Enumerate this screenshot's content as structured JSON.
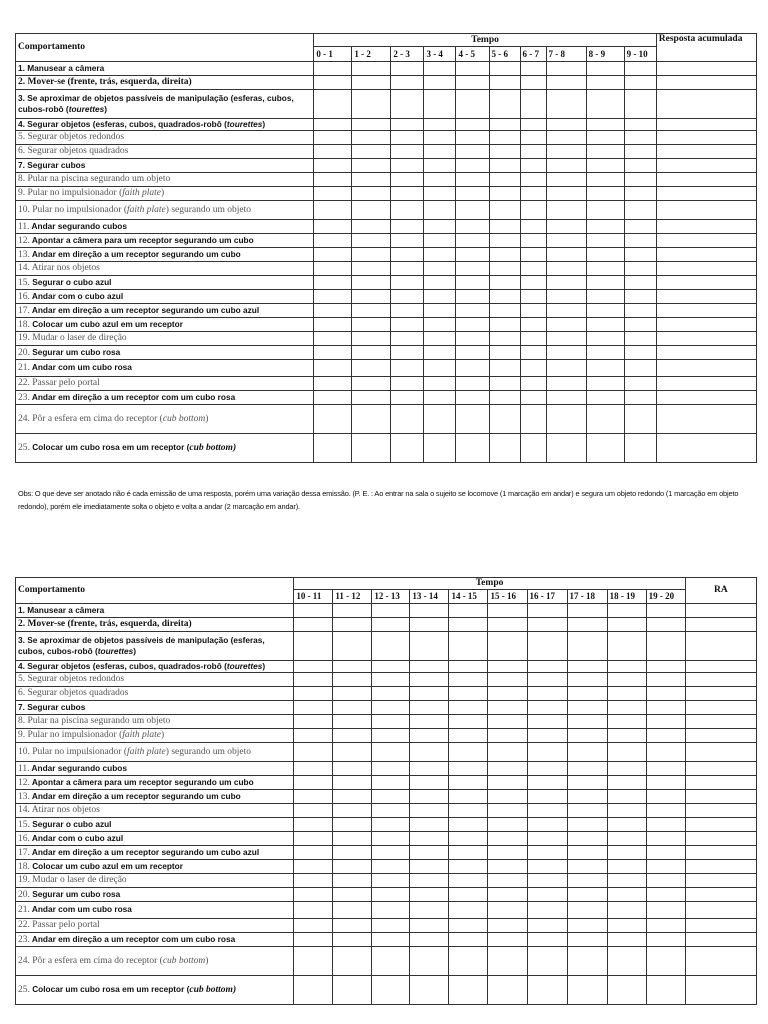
{
  "table1": {
    "behavior_header": "Comportamento",
    "time_header": "Tempo",
    "last_header": "Resposta acumulada",
    "intervals": [
      "0 - 1",
      "1 - 2",
      "2 - 3",
      "3 - 4",
      "4 - 5",
      "5 - 6",
      "6 - 7",
      "7 - 8",
      "8 - 9",
      "9 - 10"
    ]
  },
  "table2": {
    "behavior_header": "Comportamento",
    "time_header": "Tempo",
    "last_header": "RA",
    "intervals": [
      "10 - 11",
      "11 - 12",
      "12 - 13",
      "13 - 14",
      "14 - 15",
      "15 - 16",
      "16 - 17",
      "17 - 18",
      "18 - 19",
      "19 - 20"
    ]
  },
  "behaviors": [
    {
      "num": "1.",
      "pre": "Manusear a câmera",
      "it": "",
      "post": ""
    },
    {
      "num": "2.",
      "pre": "Mover-se (frente, trás, esquerda, direita)",
      "it": "",
      "post": ""
    },
    {
      "num": "3.",
      "pre": "Se aproximar de objetos passíveis de manipulação (esferas, cubos, cubos-robô (",
      "it": "tourettes",
      "post": ")"
    },
    {
      "num": "4.",
      "pre": "Segurar objetos (esferas, cubos, quadrados-robô (",
      "it": "tourettes",
      "post": ")"
    },
    {
      "num": "5.",
      "pre": "Segurar objetos redondos",
      "it": "",
      "post": ""
    },
    {
      "num": "6.",
      "pre": "Segurar objetos quadrados",
      "it": "",
      "post": ""
    },
    {
      "num": "7.",
      "pre": "Segurar cubos",
      "it": "",
      "post": ""
    },
    {
      "num": "8.",
      "pre": "Pular na piscina segurando um objeto",
      "it": "",
      "post": ""
    },
    {
      "num": "9.",
      "pre": "Pular no impulsionador (",
      "it": "faith plate",
      "post": ")"
    },
    {
      "num": "10.",
      "pre": "Pular no impulsionador (",
      "it": "faith plate",
      "post": ") segurando um objeto"
    },
    {
      "num": "11.",
      "pre": "Andar segurando cubos",
      "it": "",
      "post": ""
    },
    {
      "num": "12.",
      "pre": "Apontar a câmera para um receptor segurando um cubo",
      "it": "",
      "post": ""
    },
    {
      "num": "13.",
      "pre": "Andar em direção a um receptor segurando um cubo",
      "it": "",
      "post": ""
    },
    {
      "num": "14.",
      "pre": "Atirar nos objetos",
      "it": "",
      "post": ""
    },
    {
      "num": "15.",
      "pre": "Segurar o cubo azul",
      "it": "",
      "post": ""
    },
    {
      "num": "16.",
      "pre": "Andar com o cubo azul",
      "it": "",
      "post": ""
    },
    {
      "num": "17.",
      "pre": "Andar em direção a um receptor segurando um cubo azul",
      "it": "",
      "post": ""
    },
    {
      "num": "18.",
      "pre": "Colocar um cubo azul em um receptor",
      "it": "",
      "post": ""
    },
    {
      "num": "19.",
      "pre": "Mudar o laser de direção",
      "it": "",
      "post": ""
    },
    {
      "num": "20.",
      "pre": "Segurar um cubo rosa",
      "it": "",
      "post": ""
    },
    {
      "num": "21.",
      "pre": "Andar com um cubo rosa",
      "it": "",
      "post": ""
    },
    {
      "num": "22.",
      "pre": "Passar pelo portal",
      "it": "",
      "post": ""
    },
    {
      "num": "23.",
      "pre": "Andar em direção a um receptor com um cubo rosa",
      "it": "",
      "post": ""
    },
    {
      "num": "24.",
      "pre": "Pôr a esfera em cima do receptor (",
      "it": "cub bottom",
      "post": ")"
    },
    {
      "num": "25.",
      "pre": "Colocar um cubo rosa em um receptor (",
      "it": "cub bottom",
      "post": ")"
    }
  ],
  "obs": "Obs: O que deve ser anotado não é cada emissão de uma resposta, porém uma variação dessa emissão. (P. E. : Ao entrar na sala o sujeito se locomove (1 marcação em andar) e segura um objeto redondo (1 marcação em objeto redondo), porém ele imediatamente solta o objeto e volta a andar (2 marcação em andar)."
}
